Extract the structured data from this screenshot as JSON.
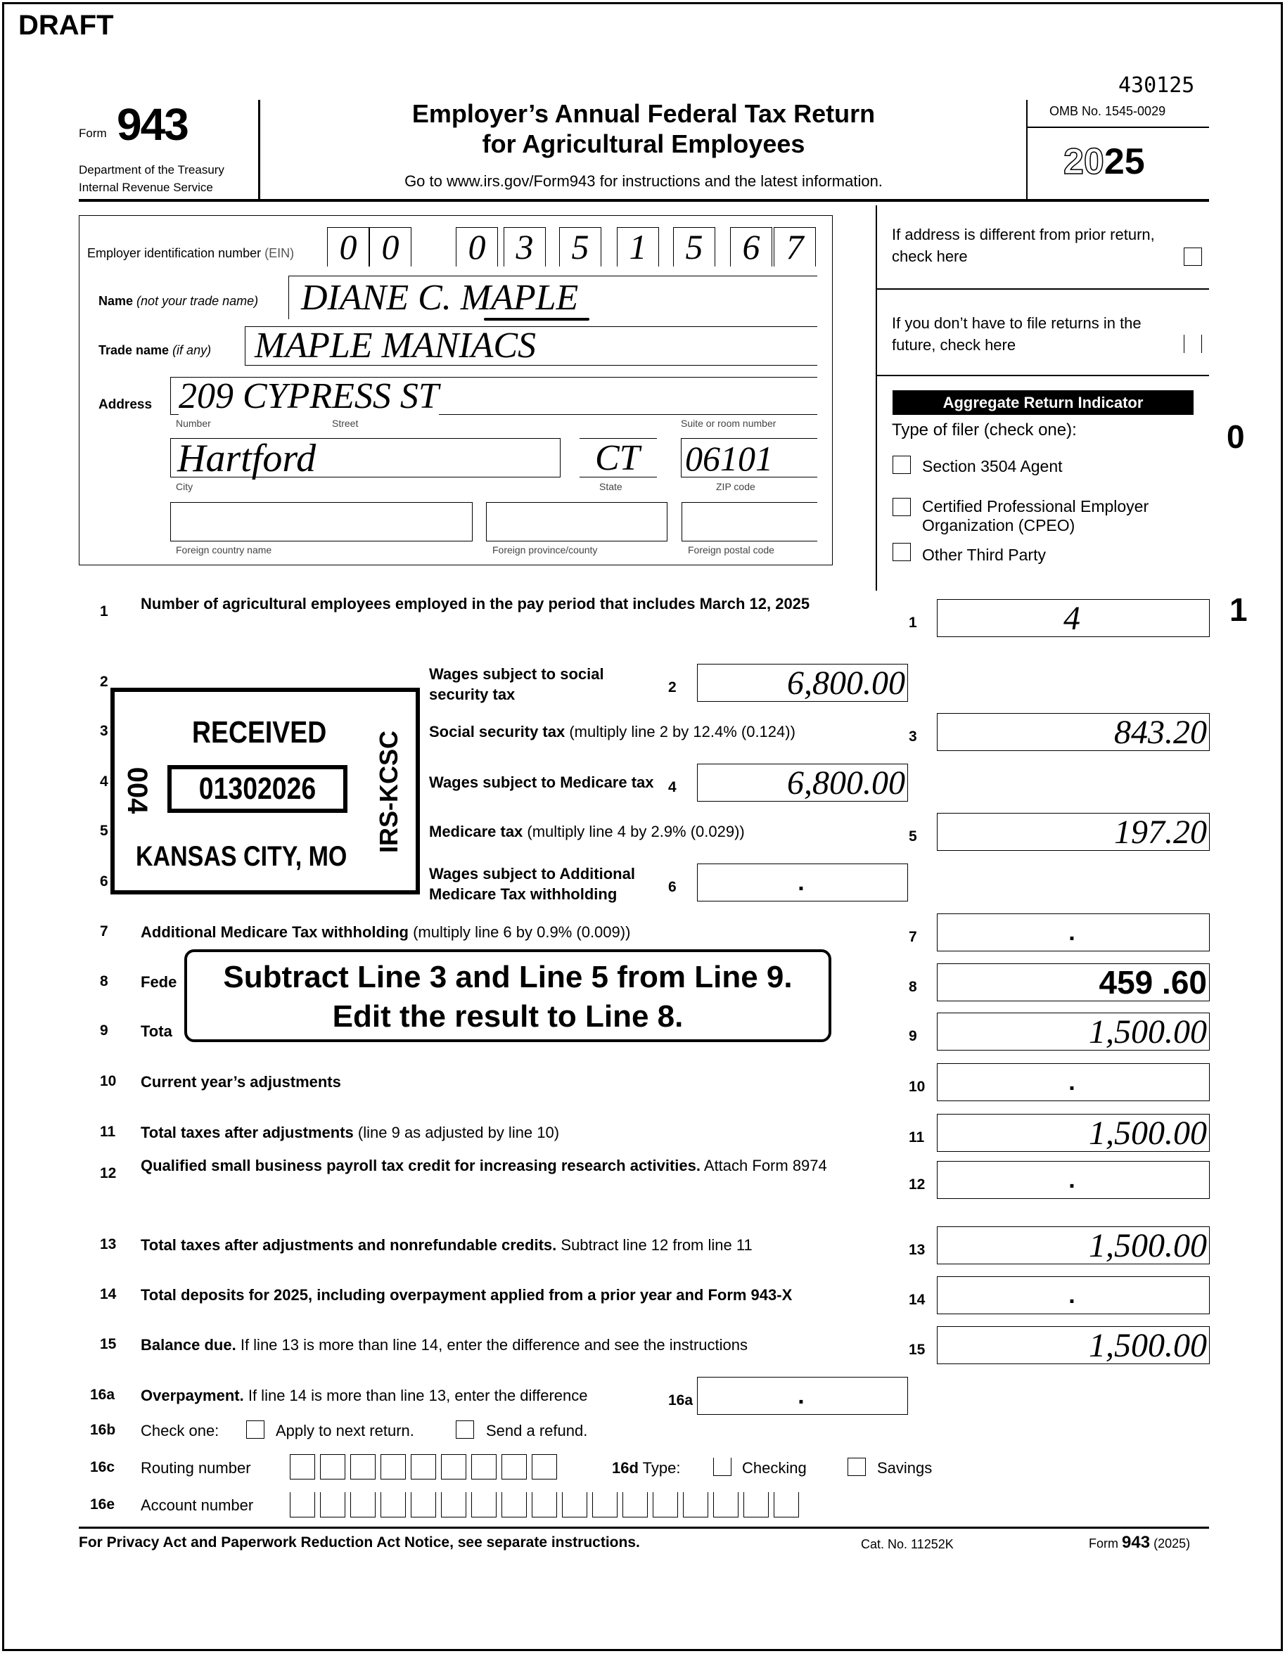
{
  "watermark": "DRAFT",
  "form_code": "430125",
  "header": {
    "form_label": "Form",
    "form_number": "943",
    "dept": "Department of the Treasury",
    "irs": "Internal Revenue Service",
    "title1": "Employer’s Annual Federal Tax Return",
    "title2": "for Agricultural Employees",
    "goto": "Go to www.irs.gov/Form943 for instructions and the latest information.",
    "omb": "OMB No. 1545-0029",
    "year_light": "20",
    "year_bold": "25"
  },
  "employer": {
    "ein_label": "Employer identification number",
    "ein_suffix": "(EIN)",
    "ein_digits": [
      "0",
      "0",
      "0",
      "3",
      "5",
      "1",
      "5",
      "6",
      "7"
    ],
    "name_label": "Name",
    "name_hint": "(not your trade name)",
    "name": "DIANE C. MAPLE",
    "trade_label": "Trade name",
    "trade_hint": "(if any)",
    "trade_name": "MAPLE MANIACS",
    "address_label": "Address",
    "street": "209 CYPRESS ST",
    "number_caption": "Number",
    "street_caption": "Street",
    "suite_caption": "Suite or room number",
    "city": "Hartford",
    "state": "CT",
    "zip": "06101",
    "city_caption": "City",
    "state_caption": "State",
    "zip_caption": "ZIP code",
    "foreign_country_caption": "Foreign country name",
    "foreign_province_caption": "Foreign province/county",
    "foreign_postal_caption": "Foreign postal code"
  },
  "side": {
    "address_change": "If address is different from prior return, check here",
    "no_file": "If you don’t have to file returns in the future, check here",
    "aggregate": "Aggregate Return Indicator",
    "filer_type": "Type of filer (check one):",
    "options": [
      "Section 3504 Agent",
      "Certified Professional Employer Organization (CPEO)",
      "Other Third Party"
    ],
    "margin_0": "0",
    "margin_1": "1"
  },
  "lines": [
    {
      "num": "1",
      "bold": "Number of agricultural employees employed in the pay period that includes March 12, 2025",
      "rest": "",
      "value": "4"
    },
    {
      "num": "2",
      "bold": "Wages subject to social security tax",
      "rest": "",
      "value": "6,800.00"
    },
    {
      "num": "3",
      "bold": "Social security tax",
      "rest": " (multiply line 2 by 12.4% (0.124))",
      "value": "843.20"
    },
    {
      "num": "4",
      "bold": "Wages subject to Medicare tax",
      "rest": "",
      "value": "6,800.00"
    },
    {
      "num": "5",
      "bold": "Medicare tax",
      "rest": " (multiply line 4 by 2.9% (0.029))",
      "value": "197.20"
    },
    {
      "num": "6",
      "bold": "Wages subject to Additional Medicare Tax withholding",
      "rest": "",
      "value": "."
    },
    {
      "num": "7",
      "bold": "Additional Medicare Tax withholding",
      "rest": " (multiply line 6 by 0.9% (0.009))",
      "value": "."
    },
    {
      "num": "8",
      "bold": "Fede",
      "rest": "",
      "value": "459 .60"
    },
    {
      "num": "9",
      "bold": "Tota",
      "rest": "",
      "value": "1,500.00"
    },
    {
      "num": "10",
      "bold": "Current year’s adjustments",
      "rest": "",
      "value": "."
    },
    {
      "num": "11",
      "bold": "Total taxes after adjustments",
      "rest": " (line 9 as adjusted by line 10)",
      "value": "1,500.00"
    },
    {
      "num": "12",
      "bold": "Qualified small business payroll tax credit for increasing research activities.",
      "rest": " Attach Form 8974",
      "value": "."
    },
    {
      "num": "13",
      "bold": "Total taxes after adjustments and nonrefundable credits.",
      "rest": " Subtract line 12 from line 11",
      "value": "1,500.00"
    },
    {
      "num": "14",
      "bold": "Total deposits for 2025, including overpayment applied from a prior year and Form 943-X",
      "rest": "",
      "value": "."
    },
    {
      "num": "15",
      "bold": "Balance due.",
      "rest": " If line 13 is more than line 14, enter the difference and see the instructions",
      "value": "1,500.00"
    },
    {
      "num": "16a",
      "bold": "Overpayment.",
      "rest": " If line 14 is more than line 13, enter the difference",
      "value": "."
    }
  ],
  "line16": {
    "b_num": "16b",
    "b_label": "Check one:",
    "apply": "Apply to next return.",
    "refund": "Send a refund.",
    "c_num": "16c",
    "routing": "Routing number",
    "d_num": "16d",
    "type": "Type:",
    "checking": "Checking",
    "savings": "Savings",
    "e_num": "16e",
    "account": "Account number"
  },
  "stamp": {
    "received": "RECEIVED",
    "date": "01302026",
    "city": "KANSAS CITY, MO",
    "side_left": "004",
    "side_right": "IRS-KCSC"
  },
  "callout": {
    "line1": "Subtract Line 3 and Line 5 from Line 9.",
    "line2": "Edit the result to Line 8."
  },
  "footer": {
    "privacy": "For Privacy Act and Paperwork Reduction Act Notice, see separate instructions.",
    "cat": "Cat. No. 11252K",
    "form_label": "Form",
    "form_number": "943",
    "year": "(2025)"
  }
}
